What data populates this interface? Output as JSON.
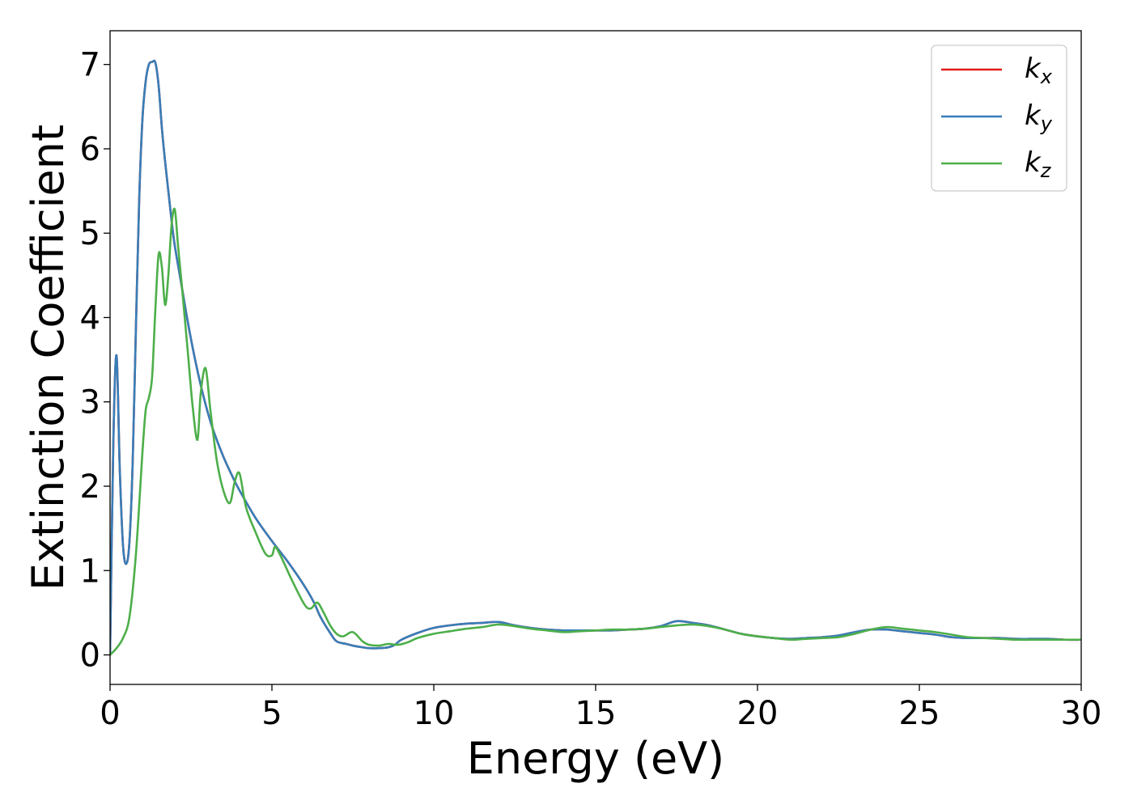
{
  "chart_data": {
    "type": "line",
    "title": "",
    "xlabel": "Energy (eV)",
    "ylabel": "Extinction Coefficient",
    "xlim": [
      0,
      30
    ],
    "ylim": [
      -0.35,
      7.4
    ],
    "xticks": [
      0,
      5,
      10,
      15,
      20,
      25,
      30
    ],
    "yticks": [
      0,
      1,
      2,
      3,
      4,
      5,
      6,
      7
    ],
    "grid": false,
    "legend_position": "top-right",
    "series": [
      {
        "name": "k",
        "subscript": "x",
        "color": "#e41a1c",
        "x": [
          0,
          0.1,
          0.2,
          0.3,
          0.4,
          0.5,
          0.6,
          0.7,
          0.8,
          0.9,
          1.0,
          1.1,
          1.2,
          1.3,
          1.4,
          1.5,
          1.6,
          1.7,
          1.8,
          1.9,
          2.0,
          2.2,
          2.4,
          2.6,
          2.8,
          3.0,
          3.2,
          3.5,
          3.8,
          4.0,
          4.5,
          5.0,
          5.5,
          6.0,
          6.3,
          6.5,
          6.8,
          7.0,
          7.3,
          7.5,
          7.8,
          8.0,
          8.3,
          8.6,
          8.8,
          9.0,
          9.5,
          10.0,
          10.5,
          11.0,
          11.5,
          12.0,
          12.5,
          13.0,
          13.5,
          14.0,
          14.5,
          15.0,
          15.5,
          16.0,
          16.5,
          17.0,
          17.5,
          18.0,
          18.5,
          19.0,
          19.5,
          20.0,
          20.5,
          21.0,
          21.5,
          22.0,
          22.5,
          23.0,
          23.5,
          24.0,
          24.5,
          25.0,
          25.5,
          26.0,
          26.5,
          27.0,
          27.5,
          28.0,
          28.5,
          29.0,
          29.5,
          30.0
        ],
        "y": [
          0.0,
          2.5,
          3.55,
          2.2,
          1.3,
          1.08,
          1.35,
          2.3,
          3.9,
          5.4,
          6.35,
          6.8,
          7.0,
          7.03,
          7.02,
          6.75,
          6.25,
          5.85,
          5.5,
          5.15,
          4.85,
          4.4,
          3.95,
          3.55,
          3.2,
          2.9,
          2.65,
          2.35,
          2.1,
          1.95,
          1.62,
          1.35,
          1.1,
          0.82,
          0.62,
          0.45,
          0.26,
          0.16,
          0.13,
          0.11,
          0.09,
          0.08,
          0.08,
          0.09,
          0.12,
          0.18,
          0.26,
          0.32,
          0.35,
          0.37,
          0.38,
          0.39,
          0.35,
          0.32,
          0.3,
          0.29,
          0.29,
          0.29,
          0.29,
          0.3,
          0.31,
          0.34,
          0.4,
          0.38,
          0.35,
          0.3,
          0.25,
          0.22,
          0.2,
          0.19,
          0.2,
          0.21,
          0.23,
          0.27,
          0.3,
          0.3,
          0.28,
          0.26,
          0.24,
          0.21,
          0.2,
          0.2,
          0.2,
          0.19,
          0.19,
          0.19,
          0.18,
          0.18
        ]
      },
      {
        "name": "k",
        "subscript": "y",
        "color": "#377eb8",
        "x": [
          0,
          0.1,
          0.2,
          0.3,
          0.4,
          0.5,
          0.6,
          0.7,
          0.8,
          0.9,
          1.0,
          1.1,
          1.2,
          1.3,
          1.4,
          1.5,
          1.6,
          1.7,
          1.8,
          1.9,
          2.0,
          2.2,
          2.4,
          2.6,
          2.8,
          3.0,
          3.2,
          3.5,
          3.8,
          4.0,
          4.5,
          5.0,
          5.5,
          6.0,
          6.3,
          6.5,
          6.8,
          7.0,
          7.3,
          7.5,
          7.8,
          8.0,
          8.3,
          8.6,
          8.8,
          9.0,
          9.5,
          10.0,
          10.5,
          11.0,
          11.5,
          12.0,
          12.5,
          13.0,
          13.5,
          14.0,
          14.5,
          15.0,
          15.5,
          16.0,
          16.5,
          17.0,
          17.5,
          18.0,
          18.5,
          19.0,
          19.5,
          20.0,
          20.5,
          21.0,
          21.5,
          22.0,
          22.5,
          23.0,
          23.5,
          24.0,
          24.5,
          25.0,
          25.5,
          26.0,
          26.5,
          27.0,
          27.5,
          28.0,
          28.5,
          29.0,
          29.5,
          30.0
        ],
        "y": [
          0.0,
          2.5,
          3.55,
          2.2,
          1.3,
          1.08,
          1.35,
          2.3,
          3.9,
          5.4,
          6.35,
          6.8,
          7.0,
          7.03,
          7.02,
          6.75,
          6.25,
          5.85,
          5.5,
          5.15,
          4.85,
          4.4,
          3.95,
          3.55,
          3.2,
          2.9,
          2.65,
          2.35,
          2.1,
          1.95,
          1.62,
          1.35,
          1.1,
          0.82,
          0.62,
          0.45,
          0.26,
          0.16,
          0.13,
          0.11,
          0.09,
          0.08,
          0.08,
          0.09,
          0.12,
          0.18,
          0.26,
          0.32,
          0.35,
          0.37,
          0.38,
          0.39,
          0.35,
          0.32,
          0.3,
          0.29,
          0.29,
          0.29,
          0.29,
          0.3,
          0.31,
          0.34,
          0.4,
          0.38,
          0.35,
          0.3,
          0.25,
          0.22,
          0.2,
          0.19,
          0.2,
          0.21,
          0.23,
          0.27,
          0.3,
          0.3,
          0.28,
          0.26,
          0.24,
          0.21,
          0.2,
          0.2,
          0.2,
          0.19,
          0.19,
          0.19,
          0.18,
          0.18
        ]
      },
      {
        "name": "k",
        "subscript": "z",
        "color": "#4daf4a",
        "x": [
          0,
          0.2,
          0.4,
          0.6,
          0.8,
          1.0,
          1.1,
          1.2,
          1.3,
          1.4,
          1.5,
          1.6,
          1.7,
          1.8,
          1.9,
          2.0,
          2.1,
          2.2,
          2.4,
          2.55,
          2.7,
          2.8,
          2.95,
          3.1,
          3.3,
          3.5,
          3.7,
          3.85,
          4.0,
          4.2,
          4.5,
          4.8,
          5.0,
          5.1,
          5.3,
          5.6,
          6.0,
          6.2,
          6.4,
          6.6,
          6.8,
          7.0,
          7.2,
          7.5,
          7.8,
          8.0,
          8.3,
          8.6,
          8.9,
          9.2,
          9.5,
          10.0,
          10.5,
          11.0,
          11.5,
          12.0,
          12.5,
          13.0,
          13.5,
          14.0,
          14.5,
          15.0,
          15.5,
          16.0,
          16.5,
          17.0,
          17.5,
          18.0,
          18.5,
          19.0,
          19.5,
          20.0,
          20.5,
          21.0,
          21.5,
          22.0,
          22.5,
          23.0,
          23.5,
          24.0,
          24.5,
          25.0,
          25.5,
          26.0,
          26.5,
          27.0,
          27.5,
          28.0,
          28.5,
          29.0,
          29.5,
          30.0
        ],
        "y": [
          0.0,
          0.08,
          0.2,
          0.45,
          1.2,
          2.4,
          2.9,
          3.05,
          3.3,
          4.1,
          4.75,
          4.6,
          4.15,
          4.5,
          5.1,
          5.28,
          4.85,
          4.45,
          3.6,
          2.95,
          2.55,
          3.1,
          3.4,
          2.9,
          2.3,
          1.95,
          1.8,
          2.05,
          2.15,
          1.75,
          1.45,
          1.2,
          1.18,
          1.28,
          1.15,
          0.9,
          0.6,
          0.55,
          0.62,
          0.5,
          0.35,
          0.25,
          0.22,
          0.27,
          0.16,
          0.12,
          0.11,
          0.13,
          0.12,
          0.15,
          0.2,
          0.25,
          0.28,
          0.31,
          0.33,
          0.36,
          0.34,
          0.31,
          0.29,
          0.27,
          0.28,
          0.29,
          0.3,
          0.3,
          0.31,
          0.33,
          0.35,
          0.36,
          0.34,
          0.3,
          0.25,
          0.22,
          0.2,
          0.18,
          0.19,
          0.2,
          0.21,
          0.25,
          0.3,
          0.33,
          0.31,
          0.29,
          0.27,
          0.24,
          0.21,
          0.2,
          0.19,
          0.18,
          0.18,
          0.18,
          0.18,
          0.18
        ]
      }
    ]
  }
}
